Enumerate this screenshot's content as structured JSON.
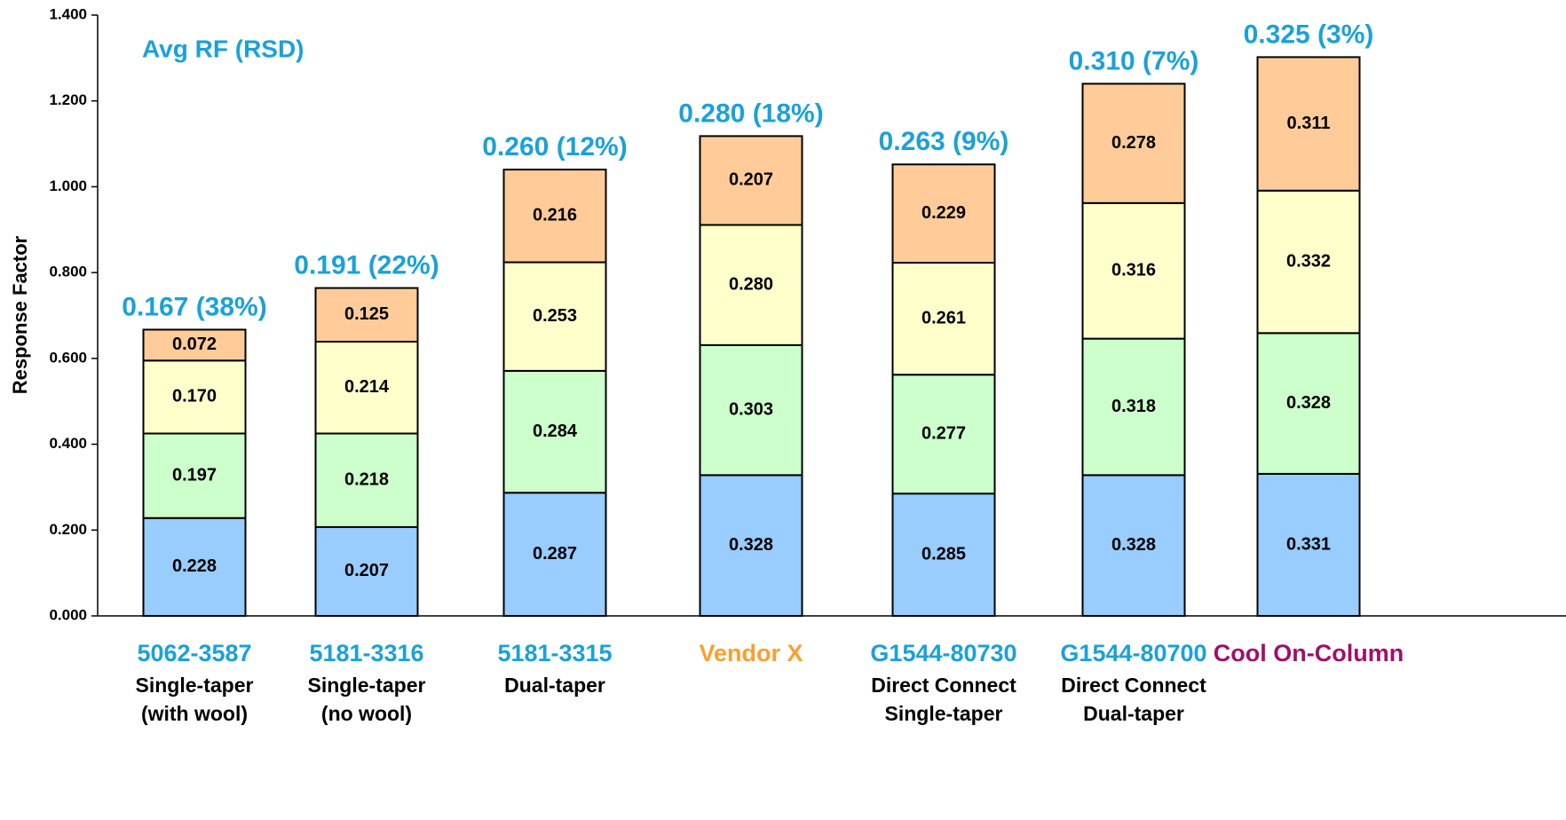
{
  "chart_data": {
    "type": "stacked_bar",
    "annotation": "Avg RF (RSD)",
    "y_label": "Response Factor",
    "categories": [
      "5062-3587",
      "5181-3316",
      "5181-3315",
      "Vendor X",
      "G1544-80730",
      "G1544-80700",
      "Cool On-Column"
    ],
    "category_colors": [
      "#1ba1d8",
      "#1ba1d8",
      "#1ba1d8",
      "#f7a030",
      "#1ba1d8",
      "#1ba1d8",
      "#a0106a"
    ],
    "category_sublabels": [
      [
        "Single-taper",
        "(with wool)"
      ],
      [
        "Single-taper",
        "(no wool)"
      ],
      [
        "Dual-taper"
      ],
      [],
      [
        "Direct Connect",
        "Single-taper"
      ],
      [
        "Direct Connect",
        "Dual-taper"
      ],
      []
    ],
    "top_labels": [
      "0.167 (38%)",
      "0.191 (22%)",
      "0.260 (12%)",
      "0.280 (18%)",
      "0.263 (9%)",
      "0.310 (7%)",
      "0.325 (3%)"
    ],
    "top_label_color": "#1ba1d8",
    "series": [
      {
        "color": "#99ccff",
        "values": [
          0.228,
          0.207,
          0.287,
          0.328,
          0.285,
          0.328,
          0.331
        ],
        "value_labels": [
          "0.228",
          "0.207",
          "0.287",
          "0.328",
          "0.285",
          "0.328",
          "0.331"
        ]
      },
      {
        "color": "#ccffcc",
        "values": [
          0.197,
          0.218,
          0.284,
          0.303,
          0.277,
          0.318,
          0.328
        ],
        "value_labels": [
          "0.197",
          "0.218",
          "0.284",
          "0.303",
          "0.277",
          "0.318",
          "0.328"
        ]
      },
      {
        "color": "#ffffcc",
        "values": [
          0.17,
          0.214,
          0.253,
          0.28,
          0.261,
          0.316,
          0.332
        ],
        "value_labels": [
          "0.170",
          "0.214",
          "0.253",
          "0.280",
          "0.261",
          "0.316",
          "0.332"
        ]
      },
      {
        "color": "#ffcc99",
        "values": [
          0.072,
          0.125,
          0.216,
          0.207,
          0.229,
          0.278,
          0.311
        ],
        "value_labels": [
          "0.072",
          "0.125",
          "0.216",
          "0.207",
          "0.229",
          "0.278",
          "0.311"
        ]
      }
    ],
    "ylim": [
      0,
      1.4
    ],
    "yticks": [
      {
        "value": 0,
        "label": "0.000"
      },
      {
        "value": 0.2,
        "label": "0.200"
      },
      {
        "value": 0.4,
        "label": "0.400"
      },
      {
        "value": 0.6,
        "label": "0.600"
      },
      {
        "value": 0.8,
        "label": "0.800"
      },
      {
        "value": 1.0,
        "label": "1.000"
      },
      {
        "value": 1.2,
        "label": "1.200"
      },
      {
        "value": 1.4,
        "label": "1.400"
      }
    ],
    "grid": false
  }
}
